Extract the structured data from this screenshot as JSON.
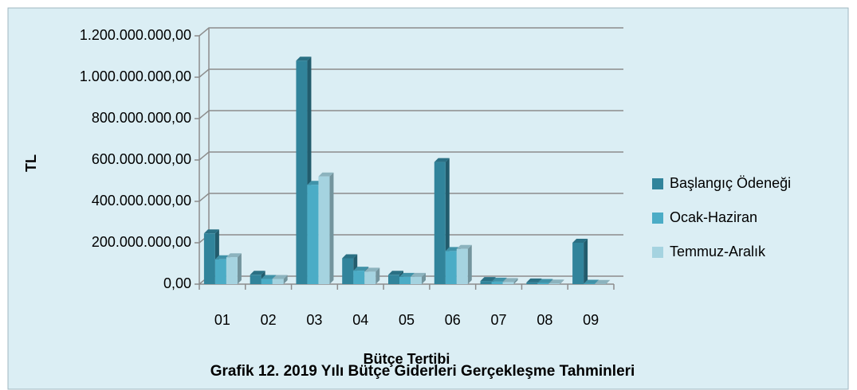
{
  "chart_data": {
    "type": "bar3d",
    "title": "Grafik 12. 2019 Yılı Bütçe Giderleri Gerçekleşme Tahminleri",
    "x_label": "Bütçe Tertibi",
    "y_label": "TL",
    "categories": [
      "01",
      "02",
      "03",
      "04",
      "05",
      "06",
      "07",
      "08",
      "09"
    ],
    "series": [
      {
        "name": "Başlangıç Ödeneği",
        "color": "#31849b",
        "values": [
          245000000,
          45000000,
          1080000000,
          125000000,
          45000000,
          590000000,
          15000000,
          8000000,
          200000000
        ]
      },
      {
        "name": "Ocak-Haziran",
        "color": "#4bacc6",
        "values": [
          120000000,
          25000000,
          480000000,
          65000000,
          35000000,
          160000000,
          12000000,
          6000000,
          2000000
        ]
      },
      {
        "name": "Temmuz-Aralık",
        "color": "#a5d3e0",
        "values": [
          130000000,
          25000000,
          520000000,
          60000000,
          35000000,
          170000000,
          10000000,
          3000000,
          1000000
        ]
      }
    ],
    "ylim": [
      0,
      1200000000
    ],
    "yticks": [
      {
        "value": 0,
        "label": "0,00"
      },
      {
        "value": 200000000,
        "label": "200.000.000,00"
      },
      {
        "value": 400000000,
        "label": "400.000.000,00"
      },
      {
        "value": 600000000,
        "label": "600.000.000,00"
      },
      {
        "value": 800000000,
        "label": "800.000.000,00"
      },
      {
        "value": 1000000000,
        "label": "1.000.000.000,00"
      },
      {
        "value": 1200000000,
        "label": "1.200.000.000,00"
      }
    ],
    "grid": true,
    "legend": "right"
  }
}
